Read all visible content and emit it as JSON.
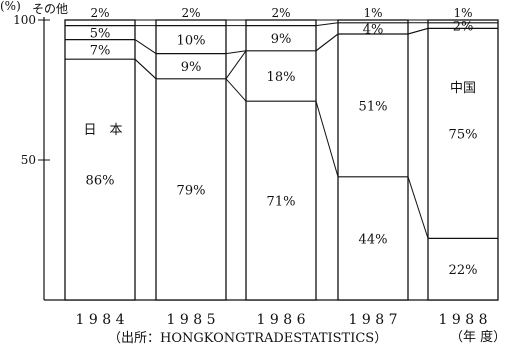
{
  "chart_data": {
    "type": "bar",
    "stacked": true,
    "unit_label": "(%)",
    "categories": [
      "1984",
      "1985",
      "1986",
      "1987",
      "1988"
    ],
    "x_tick_labels": [
      "1 9 8 4",
      "1 9 8 5",
      "1 9 8 6",
      "1 9 8 7",
      "1 9 8 8"
    ],
    "series": [
      {
        "name": "日　本",
        "values": [
          86,
          79,
          71,
          44,
          22
        ]
      },
      {
        "name": "中国",
        "values": [
          0,
          0,
          18,
          51,
          75
        ]
      },
      {
        "name": "",
        "values": [
          7,
          9,
          0,
          0,
          0
        ]
      },
      {
        "name": "",
        "values": [
          5,
          10,
          9,
          4,
          2
        ]
      },
      {
        "name": "その他",
        "values": [
          2,
          2,
          2,
          1,
          1
        ]
      }
    ],
    "ylim": [
      0,
      100
    ],
    "y_ticks": [
      50,
      100
    ],
    "xlabel": "（年 度）",
    "grid": false,
    "source": "（出所：HONGKONGTRADESTATISTICS）"
  }
}
